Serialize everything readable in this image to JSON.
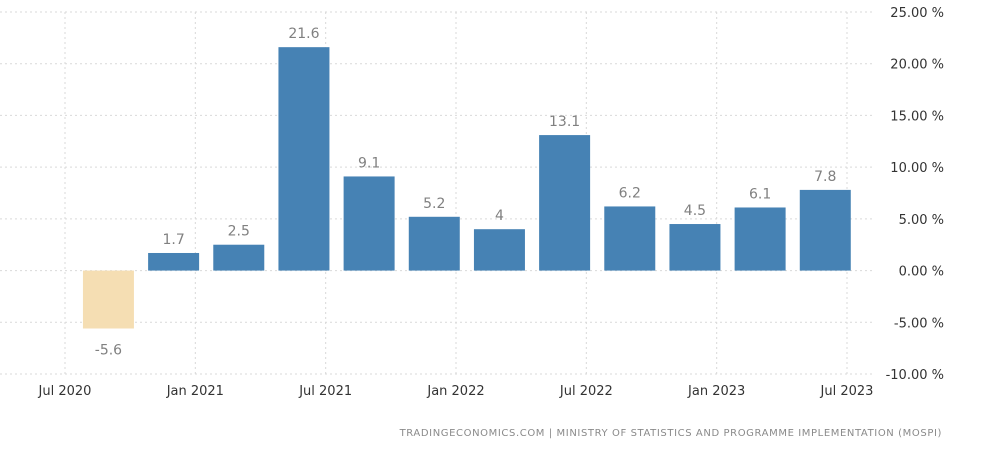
{
  "chart_data": {
    "type": "bar",
    "categories": [
      "Sep 2020",
      "Dec 2020",
      "Mar 2021",
      "Jun 2021",
      "Sep 2021",
      "Dec 2021",
      "Mar 2022",
      "Jun 2022",
      "Sep 2022",
      "Dec 2022",
      "Mar 2023",
      "Jun 2023"
    ],
    "values": [
      -5.6,
      1.7,
      2.5,
      21.6,
      9.1,
      5.2,
      4,
      13.1,
      6.2,
      4.5,
      6.1,
      7.8
    ],
    "value_labels": [
      "-5.6",
      "1.7",
      "2.5",
      "21.6",
      "9.1",
      "5.2",
      "4",
      "13.1",
      "6.2",
      "4.5",
      "6.1",
      "7.8"
    ],
    "x_ticks": [
      "Jul 2020",
      "Jan 2021",
      "Jul 2021",
      "Jan 2022",
      "Jul 2022",
      "Jan 2023",
      "Jul 2023"
    ],
    "y_ticks": [
      25,
      20,
      15,
      10,
      5,
      0,
      -5,
      -10
    ],
    "y_tick_labels": [
      "25.00 %",
      "20.00 %",
      "15.00 %",
      "10.00 %",
      "5.00 %",
      "0.00 %",
      "-5.00 %",
      "-10.00 %"
    ],
    "ylim": [
      -10,
      25
    ],
    "grid": true,
    "colors": {
      "positive": "#4682b4",
      "negative": "#f5deb3"
    },
    "title": "",
    "xlabel": "",
    "ylabel": ""
  },
  "source": "TRADINGECONOMICS.COM  |  MINISTRY OF STATISTICS AND PROGRAMME IMPLEMENTATION (MOSPI)"
}
